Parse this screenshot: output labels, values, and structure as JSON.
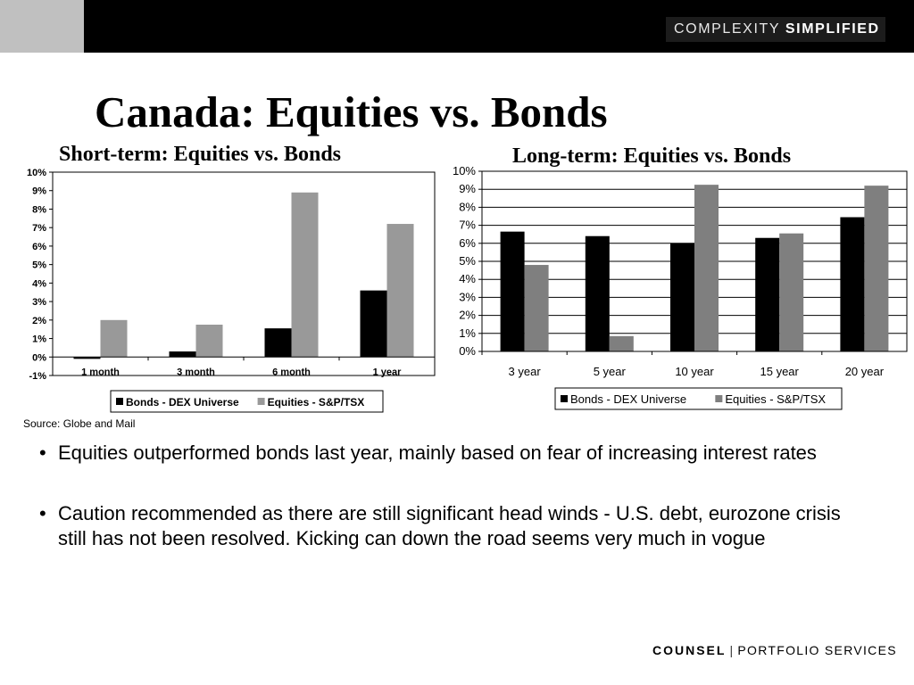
{
  "header": {
    "brand_light": "COMPLEXITY",
    "brand_bold": "SIMPLIFIED"
  },
  "title": "Canada: Equities vs. Bonds",
  "source": "Source: Globe and Mail",
  "bullets": [
    "Equities outperformed bonds last year, mainly based on fear of increasing interest rates",
    "Caution recommended as there are still significant head winds -  U.S. debt, eurozone crisis still has not been resolved. Kicking can down the road seems very much in vogue"
  ],
  "footer": {
    "strong": "COUNSEL",
    "rest": "PORTFOLIO SERVICES"
  },
  "colors": {
    "bonds": "#000000",
    "equities_short": "#999999",
    "equities_long": "#7f7f7f",
    "topbar": "#000000",
    "topbar_accent": "#c0c0c0"
  },
  "chart_data": [
    {
      "type": "bar",
      "title": "Short-term: Equities vs. Bonds",
      "categories": [
        "1 month",
        "3 month",
        "6 month",
        "1 year"
      ],
      "series": [
        {
          "name": "Bonds - DEX Universe",
          "values": [
            -0.1,
            0.3,
            1.55,
            3.6
          ]
        },
        {
          "name": "Equities - S&P/TSX",
          "values": [
            2.0,
            1.75,
            8.9,
            7.2
          ]
        }
      ],
      "ylim": [
        -1,
        10
      ],
      "yticks": [
        "-1%",
        "0%",
        "1%",
        "2%",
        "3%",
        "4%",
        "5%",
        "6%",
        "7%",
        "8%",
        "9%",
        "10%"
      ],
      "grid": false,
      "legend": "bottom"
    },
    {
      "type": "bar",
      "title": "Long-term: Equities vs. Bonds",
      "categories": [
        "3 year",
        "5 year",
        "10 year",
        "15 year",
        "20 year"
      ],
      "series": [
        {
          "name": "Bonds - DEX Universe",
          "values": [
            6.65,
            6.4,
            6.0,
            6.3,
            7.45
          ]
        },
        {
          "name": "Equities - S&P/TSX",
          "values": [
            4.8,
            0.85,
            9.25,
            6.55,
            9.2
          ]
        }
      ],
      "ylim": [
        0,
        10
      ],
      "yticks": [
        "0%",
        "1%",
        "2%",
        "3%",
        "4%",
        "5%",
        "6%",
        "7%",
        "8%",
        "9%",
        "10%"
      ],
      "grid": true,
      "legend": "bottom"
    }
  ]
}
